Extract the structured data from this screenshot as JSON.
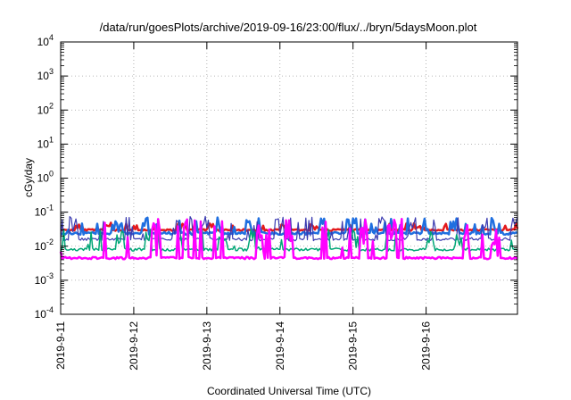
{
  "chart_data": {
    "type": "line",
    "title": "/data/run/goesPlots/archive/2019-09-16/23:00/flux/../bryn/5daysMoon.plot",
    "xlabel": "Coordinated Universal Time (UTC)",
    "ylabel": "cGy/day",
    "yscale": "log",
    "ylim": [
      0.0001,
      10000
    ],
    "xlim": [
      0,
      6.25
    ],
    "grid": true,
    "x_ticks": [
      {
        "value": 0,
        "label": "2019-9-11"
      },
      {
        "value": 1,
        "label": "2019-9-12"
      },
      {
        "value": 2,
        "label": "2019-9-13"
      },
      {
        "value": 3,
        "label": "2019-9-14"
      },
      {
        "value": 4,
        "label": "2019-9-15"
      },
      {
        "value": 5,
        "label": "2019-9-16"
      }
    ],
    "y_ticks": [
      {
        "value": 0.0001,
        "mant": "10",
        "exp": "-4"
      },
      {
        "value": 0.001,
        "mant": "10",
        "exp": "-3"
      },
      {
        "value": 0.01,
        "mant": "10",
        "exp": "-2"
      },
      {
        "value": 0.1,
        "mant": "10",
        "exp": "-1"
      },
      {
        "value": 1,
        "mant": "10",
        "exp": "0"
      },
      {
        "value": 10,
        "mant": "10",
        "exp": "1"
      },
      {
        "value": 100,
        "mant": "10",
        "exp": "2"
      },
      {
        "value": 1000,
        "mant": "10",
        "exp": "3"
      },
      {
        "value": 10000,
        "mant": "10",
        "exp": "4"
      }
    ],
    "series": [
      {
        "color": "#e31a1c",
        "width": 2.5,
        "base": 0.03,
        "amp": 0.025,
        "noise": 0.12,
        "spike": 0.7,
        "seed": 11
      },
      {
        "color": "#1f6fe0",
        "width": 2.5,
        "base": 0.024,
        "amp": 0.05,
        "noise": 0.18,
        "spike": 0.9,
        "seed": 23
      },
      {
        "color": "#3a3ab0",
        "width": 1.2,
        "base": 0.016,
        "amp": 0.06,
        "noise": 0.2,
        "spike": 1.0,
        "seed": 37
      },
      {
        "color": "#00a676",
        "width": 1.5,
        "base": 0.008,
        "amp": 0.03,
        "noise": 0.2,
        "spike": 0.8,
        "seed": 41
      },
      {
        "color": "#ff00ff",
        "width": 2.5,
        "base": 0.0045,
        "amp": 0.05,
        "noise": 0.15,
        "spike": 1.2,
        "seed": 53
      }
    ]
  }
}
